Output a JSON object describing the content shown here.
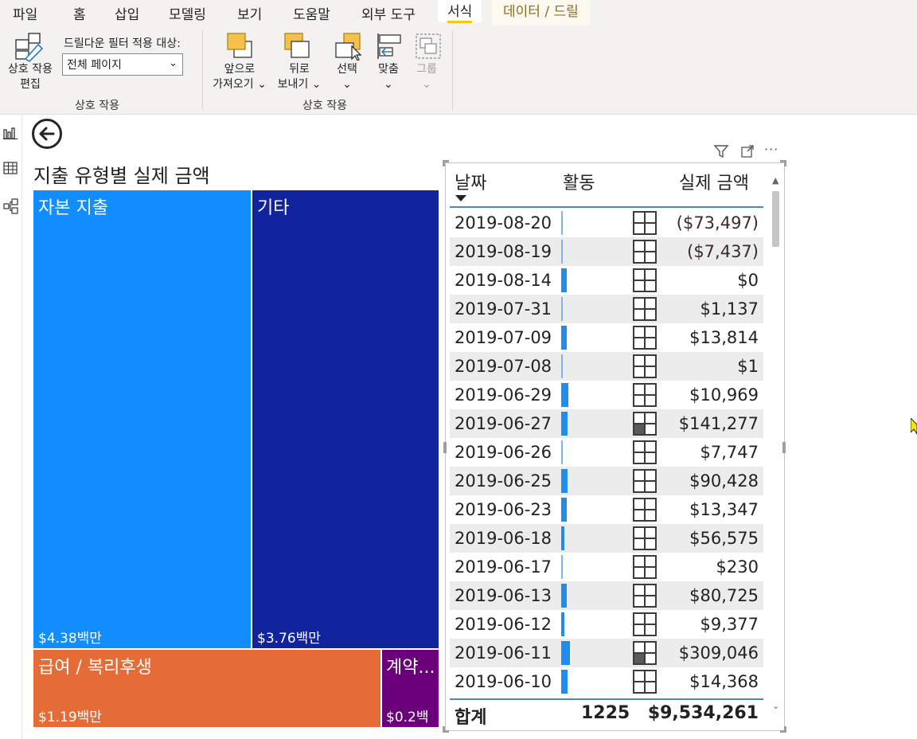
{
  "menu": {
    "file": "파일",
    "home": "홈",
    "insert": "삽입",
    "modeling": "모델링",
    "view": "보기",
    "help": "도움말",
    "external_tools": "외부 도구",
    "format": "서식",
    "data_drill": "데이터 / 드릴"
  },
  "ribbon": {
    "edit_interactions": [
      "상호 작용",
      "편집"
    ],
    "drill_filter_label": "드릴다운 필터 적용 대상:",
    "drill_filter_value": "전체 페이지",
    "group1_label": "상호 작용",
    "bring_forward": [
      "앞으로",
      "가져오기 ⌄"
    ],
    "send_backward": [
      "뒤로",
      "보내기 ⌄"
    ],
    "select": [
      "선택",
      "⌄"
    ],
    "align": [
      "맞춤",
      "⌄"
    ],
    "group": [
      "그룹",
      "⌄"
    ],
    "group2_label": "상호 작용"
  },
  "chart": {
    "title": "지출 유형별 실제 금액",
    "tiles": [
      {
        "name": "자본 지출",
        "value": "$4.38백만",
        "color": "#118dff"
      },
      {
        "name": "기타",
        "value": "$3.76백만",
        "color": "#12239e"
      },
      {
        "name": "급여 / 복리후생",
        "value": "$1.19백만",
        "color": "#e66c37"
      },
      {
        "name": "계약...",
        "value": "$0.2백",
        "color": "#6b007b"
      }
    ]
  },
  "table": {
    "columns": {
      "date": "날짜",
      "activity": "활동",
      "amount": "실제 금액"
    },
    "rows": [
      {
        "date": "2019-08-20",
        "bar": 0.01,
        "kpi": "empty",
        "amount": "($73,497)"
      },
      {
        "date": "2019-08-19",
        "bar": 0.01,
        "kpi": "empty",
        "amount": "($7,437)"
      },
      {
        "date": "2019-08-14",
        "bar": 0.12,
        "kpi": "empty",
        "amount": "$0"
      },
      {
        "date": "2019-07-31",
        "bar": 0.01,
        "kpi": "empty",
        "amount": "$1,137"
      },
      {
        "date": "2019-07-09",
        "bar": 0.12,
        "kpi": "empty",
        "amount": "$13,814"
      },
      {
        "date": "2019-07-08",
        "bar": 0.01,
        "kpi": "empty",
        "amount": "$1"
      },
      {
        "date": "2019-06-29",
        "bar": 0.15,
        "kpi": "empty",
        "amount": "$10,969"
      },
      {
        "date": "2019-06-27",
        "bar": 0.13,
        "kpi": "quarter",
        "amount": "$141,277"
      },
      {
        "date": "2019-06-26",
        "bar": 0.04,
        "kpi": "empty",
        "amount": "$7,747"
      },
      {
        "date": "2019-06-25",
        "bar": 0.13,
        "kpi": "empty",
        "amount": "$90,428"
      },
      {
        "date": "2019-06-23",
        "bar": 0.12,
        "kpi": "empty",
        "amount": "$13,347"
      },
      {
        "date": "2019-06-18",
        "bar": 0.06,
        "kpi": "empty",
        "amount": "$56,575"
      },
      {
        "date": "2019-06-17",
        "bar": 0.01,
        "kpi": "empty",
        "amount": "$230"
      },
      {
        "date": "2019-06-13",
        "bar": 0.12,
        "kpi": "empty",
        "amount": "$80,725"
      },
      {
        "date": "2019-06-12",
        "bar": 0.07,
        "kpi": "empty",
        "amount": "$9,377"
      },
      {
        "date": "2019-06-11",
        "bar": 0.18,
        "kpi": "quarter",
        "amount": "$309,046"
      },
      {
        "date": "2019-06-10",
        "bar": 0.14,
        "kpi": "empty",
        "amount": "$14,368"
      }
    ],
    "total": {
      "label": "합계",
      "activity": "1225",
      "amount": "$9,534,261"
    }
  },
  "colors": {
    "accent": "#f2c811",
    "header_line": "#4a89c8",
    "bar": "#1f8cee"
  },
  "icons": [
    "filter-icon",
    "focus-mode-icon",
    "more-options-icon",
    "back-arrow-icon",
    "report-view-icon",
    "data-view-icon",
    "model-view-icon"
  ]
}
